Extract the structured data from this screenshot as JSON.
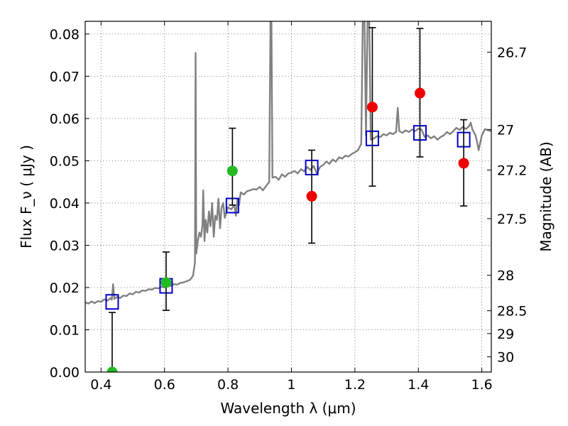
{
  "chart_data": {
    "type": "scatter",
    "xlabel": "Wavelength  λ (μm)",
    "ylabel": "Flux  F_ν  ( μJy )",
    "ylabel_right": "Magnitude (AB)",
    "xlim": [
      0.35,
      1.63
    ],
    "ylim": [
      0.0,
      0.083
    ],
    "grid": true,
    "x_ticks": [
      0.4,
      0.6,
      0.8,
      1.0,
      1.2,
      1.4,
      1.6
    ],
    "x_tick_labels": [
      "0.4",
      "0.6",
      "0.8",
      "1",
      "1.2",
      "1.4",
      "1.6"
    ],
    "y_ticks": [
      0.0,
      0.01,
      0.02,
      0.03,
      0.04,
      0.05,
      0.06,
      0.07,
      0.08
    ],
    "y_tick_labels": [
      "0.00",
      "0.01",
      "0.02",
      "0.03",
      "0.04",
      "0.05",
      "0.06",
      "0.07",
      "0.08"
    ],
    "right_ticks": [
      {
        "label": "26.7",
        "flux": 0.0757
      },
      {
        "label": "27",
        "flux": 0.0574
      },
      {
        "label": "27.2",
        "flux": 0.0478
      },
      {
        "label": "27.5",
        "flux": 0.0363
      },
      {
        "label": "28",
        "flux": 0.0229
      },
      {
        "label": "28.5",
        "flux": 0.0145
      },
      {
        "label": "29",
        "flux": 0.0091
      },
      {
        "label": "30",
        "flux": 0.0036
      }
    ],
    "series": [
      {
        "type": "line",
        "color": "#808080",
        "points": [
          [
            0.35,
            0.0165
          ],
          [
            0.36,
            0.0162
          ],
          [
            0.37,
            0.0167
          ],
          [
            0.38,
            0.0163
          ],
          [
            0.39,
            0.0168
          ],
          [
            0.4,
            0.0166
          ],
          [
            0.41,
            0.0172
          ],
          [
            0.42,
            0.0169
          ],
          [
            0.43,
            0.0175
          ],
          [
            0.434,
            0.0171
          ],
          [
            0.438,
            0.0208
          ],
          [
            0.442,
            0.0173
          ],
          [
            0.45,
            0.0178
          ],
          [
            0.46,
            0.0175
          ],
          [
            0.47,
            0.0181
          ],
          [
            0.48,
            0.018
          ],
          [
            0.49,
            0.0186
          ],
          [
            0.5,
            0.0184
          ],
          [
            0.51,
            0.019
          ],
          [
            0.52,
            0.0188
          ],
          [
            0.53,
            0.0193
          ],
          [
            0.54,
            0.0192
          ],
          [
            0.55,
            0.0196
          ],
          [
            0.56,
            0.0195
          ],
          [
            0.57,
            0.0199
          ],
          [
            0.58,
            0.0198
          ],
          [
            0.59,
            0.0202
          ],
          [
            0.6,
            0.02
          ],
          [
            0.61,
            0.0205
          ],
          [
            0.62,
            0.0204
          ],
          [
            0.63,
            0.0208
          ],
          [
            0.64,
            0.0207
          ],
          [
            0.65,
            0.0211
          ],
          [
            0.66,
            0.0212
          ],
          [
            0.67,
            0.0215
          ],
          [
            0.68,
            0.0218
          ],
          [
            0.69,
            0.0228
          ],
          [
            0.696,
            0.026
          ],
          [
            0.698,
            0.0755
          ],
          [
            0.7,
            0.028
          ],
          [
            0.705,
            0.031
          ],
          [
            0.71,
            0.033
          ],
          [
            0.715,
            0.032
          ],
          [
            0.72,
            0.035
          ],
          [
            0.722,
            0.043
          ],
          [
            0.726,
            0.031
          ],
          [
            0.73,
            0.036
          ],
          [
            0.735,
            0.033
          ],
          [
            0.74,
            0.038
          ],
          [
            0.745,
            0.0345
          ],
          [
            0.75,
            0.04
          ],
          [
            0.755,
            0.032
          ],
          [
            0.76,
            0.037
          ],
          [
            0.765,
            0.036
          ],
          [
            0.77,
            0.041
          ],
          [
            0.775,
            0.034
          ],
          [
            0.78,
            0.039
          ],
          [
            0.785,
            0.04
          ],
          [
            0.79,
            0.0365
          ],
          [
            0.8,
            0.039
          ],
          [
            0.81,
            0.0385
          ],
          [
            0.82,
            0.0395
          ],
          [
            0.825,
            0.037
          ],
          [
            0.83,
            0.041
          ],
          [
            0.835,
            0.0395
          ],
          [
            0.84,
            0.0425
          ],
          [
            0.85,
            0.042
          ],
          [
            0.86,
            0.0428
          ],
          [
            0.87,
            0.043
          ],
          [
            0.88,
            0.0433
          ],
          [
            0.89,
            0.0432
          ],
          [
            0.9,
            0.0438
          ],
          [
            0.91,
            0.043
          ],
          [
            0.92,
            0.044
          ],
          [
            0.93,
            0.045
          ],
          [
            0.934,
            0.084
          ],
          [
            0.937,
            0.084
          ],
          [
            0.94,
            0.046
          ],
          [
            0.95,
            0.0462
          ],
          [
            0.96,
            0.0455
          ],
          [
            0.97,
            0.0468
          ],
          [
            0.98,
            0.0462
          ],
          [
            0.99,
            0.047
          ],
          [
            1.0,
            0.0472
          ],
          [
            1.01,
            0.0476
          ],
          [
            1.02,
            0.047
          ],
          [
            1.03,
            0.048
          ],
          [
            1.04,
            0.0475
          ],
          [
            1.05,
            0.0485
          ],
          [
            1.06,
            0.0478
          ],
          [
            1.07,
            0.0488
          ],
          [
            1.08,
            0.047
          ],
          [
            1.09,
            0.0485
          ],
          [
            1.1,
            0.049
          ],
          [
            1.11,
            0.0498
          ],
          [
            1.12,
            0.0493
          ],
          [
            1.13,
            0.0503
          ],
          [
            1.14,
            0.0498
          ],
          [
            1.15,
            0.0508
          ],
          [
            1.16,
            0.0505
          ],
          [
            1.17,
            0.0512
          ],
          [
            1.18,
            0.051
          ],
          [
            1.19,
            0.0516
          ],
          [
            1.2,
            0.052
          ],
          [
            1.21,
            0.0525
          ],
          [
            1.22,
            0.054
          ],
          [
            1.225,
            0.084
          ],
          [
            1.23,
            0.084
          ],
          [
            1.235,
            0.056
          ],
          [
            1.24,
            0.084
          ],
          [
            1.245,
            0.084
          ],
          [
            1.25,
            0.055
          ],
          [
            1.26,
            0.0553
          ],
          [
            1.27,
            0.0558
          ],
          [
            1.28,
            0.0556
          ],
          [
            1.29,
            0.0563
          ],
          [
            1.3,
            0.056
          ],
          [
            1.31,
            0.0566
          ],
          [
            1.32,
            0.0563
          ],
          [
            1.33,
            0.0568
          ],
          [
            1.335,
            0.0625
          ],
          [
            1.34,
            0.057
          ],
          [
            1.35,
            0.0566
          ],
          [
            1.36,
            0.0572
          ],
          [
            1.37,
            0.0568
          ],
          [
            1.38,
            0.0574
          ],
          [
            1.39,
            0.057
          ],
          [
            1.4,
            0.0576
          ],
          [
            1.41,
            0.0574
          ],
          [
            1.42,
            0.0556
          ],
          [
            1.43,
            0.056
          ],
          [
            1.44,
            0.0553
          ],
          [
            1.45,
            0.0558
          ],
          [
            1.46,
            0.055
          ],
          [
            1.47,
            0.0556
          ],
          [
            1.48,
            0.056
          ],
          [
            1.49,
            0.0568
          ],
          [
            1.5,
            0.0563
          ],
          [
            1.51,
            0.057
          ],
          [
            1.52,
            0.0578
          ],
          [
            1.53,
            0.0573
          ],
          [
            1.54,
            0.058
          ],
          [
            1.55,
            0.0575
          ],
          [
            1.56,
            0.0582
          ],
          [
            1.565,
            0.059
          ],
          [
            1.57,
            0.0575
          ],
          [
            1.58,
            0.056
          ],
          [
            1.585,
            0.0545
          ],
          [
            1.59,
            0.0525
          ],
          [
            1.6,
            0.056
          ],
          [
            1.61,
            0.0575
          ],
          [
            1.62,
            0.0572
          ],
          [
            1.63,
            0.057
          ]
        ]
      },
      {
        "type": "squares",
        "color": "#0000cc",
        "points": [
          {
            "x": 0.435,
            "y": 0.0166
          },
          {
            "x": 0.605,
            "y": 0.0204
          },
          {
            "x": 0.814,
            "y": 0.0394
          },
          {
            "x": 1.064,
            "y": 0.0484
          },
          {
            "x": 1.255,
            "y": 0.0553
          },
          {
            "x": 1.405,
            "y": 0.0566
          },
          {
            "x": 1.543,
            "y": 0.055
          }
        ]
      },
      {
        "type": "errorbars",
        "color": "#000000",
        "bars": [
          {
            "x": 0.435,
            "low": 0.0,
            "high": 0.0141
          },
          {
            "x": 0.605,
            "low": 0.0146,
            "high": 0.0284
          },
          {
            "x": 0.814,
            "low": 0.0395,
            "high": 0.0577
          },
          {
            "x": 1.064,
            "low": 0.0305,
            "high": 0.0525
          },
          {
            "x": 1.255,
            "low": 0.044,
            "high": 0.0815
          },
          {
            "x": 1.405,
            "low": 0.0509,
            "high": 0.0813
          },
          {
            "x": 1.543,
            "low": 0.0393,
            "high": 0.0597
          }
        ]
      },
      {
        "type": "points",
        "color": "#22bb22",
        "points": [
          {
            "x": 0.435,
            "y": 0.0
          },
          {
            "x": 0.605,
            "y": 0.0212
          },
          {
            "x": 0.814,
            "y": 0.0476
          }
        ]
      },
      {
        "type": "points",
        "color": "#ee0000",
        "points": [
          {
            "x": 1.064,
            "y": 0.0416
          },
          {
            "x": 1.255,
            "y": 0.0627
          },
          {
            "x": 1.405,
            "y": 0.066
          },
          {
            "x": 1.543,
            "y": 0.0494
          }
        ]
      }
    ]
  }
}
